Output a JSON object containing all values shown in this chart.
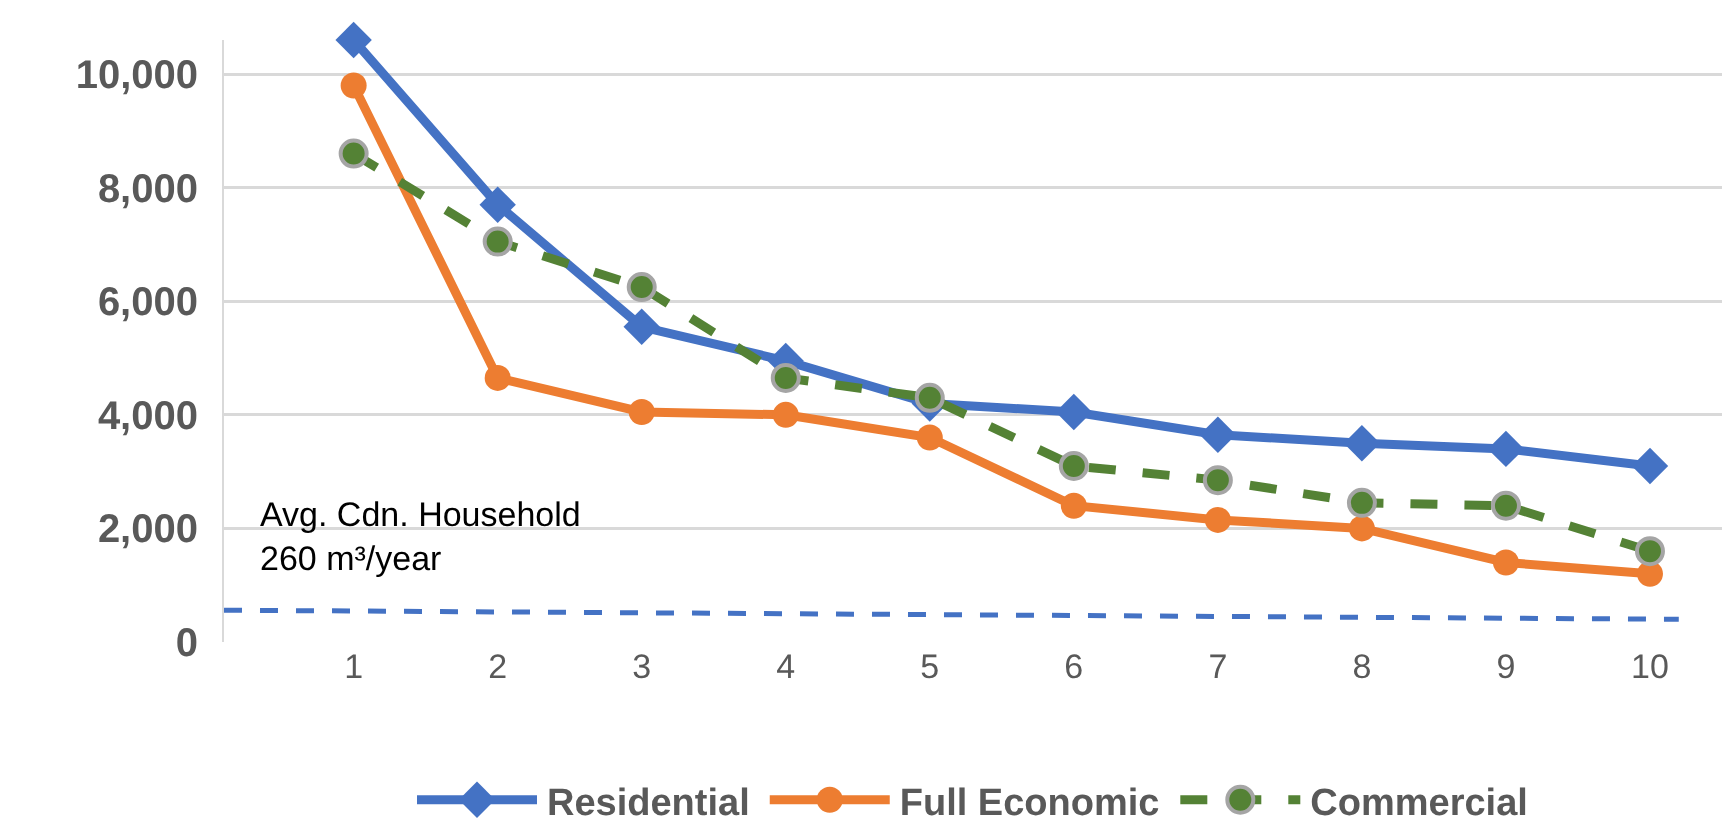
{
  "chart_data": {
    "type": "line",
    "x": [
      1,
      2,
      3,
      4,
      5,
      6,
      7,
      8,
      9,
      10
    ],
    "series": [
      {
        "name": "Residential",
        "color": "#4472c4",
        "marker": "diamond",
        "line_style": "solid",
        "values": [
          10600,
          7700,
          5550,
          4950,
          4200,
          4050,
          3650,
          3500,
          3400,
          3100
        ]
      },
      {
        "name": "Full Economic",
        "color": "#ed7d31",
        "marker": "circle",
        "line_style": "solid",
        "values": [
          9800,
          4650,
          4050,
          4000,
          3600,
          2400,
          2150,
          2000,
          1400,
          1200
        ]
      },
      {
        "name": "Commercial",
        "color": "#548235",
        "marker": "circle",
        "line_style": "dashed",
        "values": [
          8600,
          7050,
          6250,
          4650,
          4300,
          3100,
          2850,
          2450,
          2400,
          1600
        ]
      },
      {
        "color": "#4472c4",
        "marker": "none",
        "line_style": "dashed",
        "x": [
          0.1,
          10.2
        ],
        "values": [
          560,
          400
        ]
      }
    ],
    "xlim": [
      0.1,
      10.5
    ],
    "xticks": [
      1,
      2,
      3,
      4,
      5,
      6,
      7,
      8,
      9,
      10
    ],
    "ylim": [
      0,
      10600
    ],
    "yticks": [
      {
        "value": 0,
        "label": "0"
      },
      {
        "value": 2000,
        "label": "2,000"
      },
      {
        "value": 4000,
        "label": "4,000"
      },
      {
        "value": 6000,
        "label": "6,000"
      },
      {
        "value": 8000,
        "label": "8,000"
      },
      {
        "value": 10000,
        "label": "10,000"
      }
    ],
    "grid": "y",
    "legend": "bottom",
    "annotations": [
      "Avg. Cdn. Household\n260 m³/year"
    ]
  }
}
